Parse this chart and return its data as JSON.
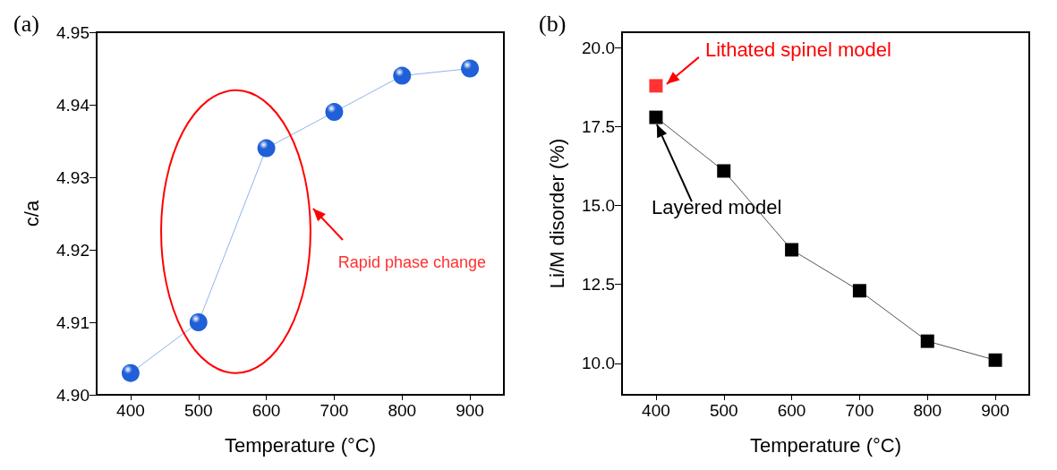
{
  "chart_data": [
    {
      "type": "line",
      "title": "(a)",
      "xlabel": "Temperature (°C)",
      "ylabel": "c/a",
      "x": [
        400,
        500,
        600,
        700,
        800,
        900
      ],
      "series": [
        {
          "color": "#1f5fd8",
          "values": [
            4.903,
            4.91,
            4.934,
            4.939,
            4.944,
            4.945
          ]
        }
      ],
      "xlim": [
        350,
        950
      ],
      "xticks": [
        400,
        500,
        600,
        700,
        800,
        900
      ],
      "ylim": [
        4.9,
        4.95
      ],
      "yticks": [
        {
          "value": 4.9,
          "label": "4.90"
        },
        {
          "value": 4.91,
          "label": "4.91"
        },
        {
          "value": 4.92,
          "label": "4.92"
        },
        {
          "value": 4.93,
          "label": "4.93"
        },
        {
          "value": 4.94,
          "label": "4.94"
        },
        {
          "value": 4.95,
          "label": "4.95"
        }
      ],
      "marker": "circle",
      "line_style": "solid",
      "grid": false,
      "annotations": [
        "Rapid phase change"
      ]
    },
    {
      "type": "line",
      "title": "(b)",
      "xlabel": "Temperature (°C)",
      "ylabel": "Li/M disorder (%)",
      "x": [
        400,
        500,
        600,
        700,
        800,
        900
      ],
      "series": [
        {
          "color": "#000000",
          "values": [
            17.8,
            16.1,
            13.6,
            12.3,
            10.7,
            10.1
          ]
        },
        {
          "type": "scatter",
          "color": "#ff0000",
          "x": [
            400
          ],
          "values": [
            18.8
          ]
        }
      ],
      "xlim": [
        350,
        950
      ],
      "xticks": [
        400,
        500,
        600,
        700,
        800,
        900
      ],
      "ylim": [
        9,
        20.5
      ],
      "yticks": [
        {
          "value": 10,
          "label": "10.0"
        },
        {
          "value": 12.5,
          "label": "12.5"
        },
        {
          "value": 15,
          "label": "15.0"
        },
        {
          "value": 17.5,
          "label": "17.5"
        },
        {
          "value": 20,
          "label": "20.0"
        }
      ],
      "marker": "square",
      "line_style": "solid",
      "grid": false,
      "annotations": [
        {
          "text": "Lithated spinel model",
          "x": 400,
          "y": 18.8
        },
        {
          "text": "Layered model",
          "x": 400,
          "y": 17.8
        }
      ]
    }
  ]
}
